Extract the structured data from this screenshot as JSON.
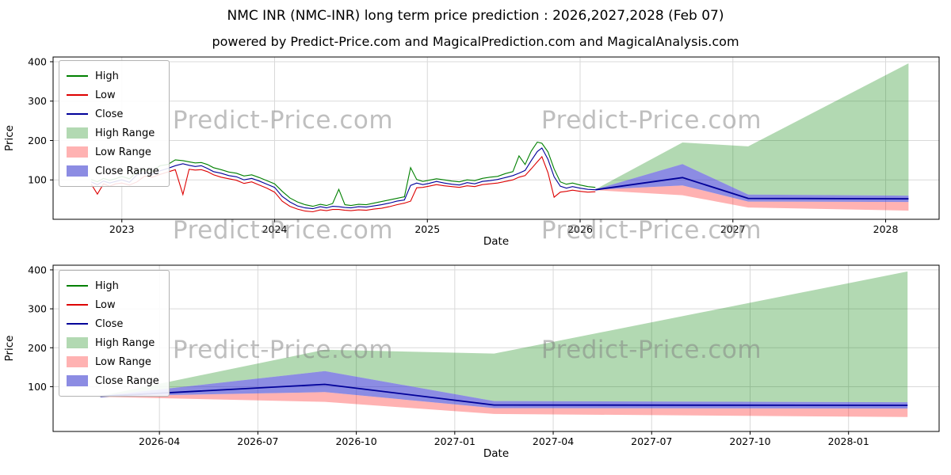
{
  "page": {
    "title": "NMC INR (NMC-INR) long term price prediction : 2026,2027,2028 (Feb 07)",
    "subtitle": "powered by Predict-Price.com and MagicalPrediction.com and MagicalAnalysis.com"
  },
  "watermark": "Predict-Price.com",
  "chart_data": {
    "type": "line",
    "title": "NMC INR (NMC-INR) long term price prediction : 2026,2027,2028 (Feb 07)",
    "subtitle": "powered by Predict-Price.com and MagicalPrediction.com and MagicalAnalysis.com",
    "legend_position": "upper left",
    "grid": true,
    "colors": {
      "high_line": "#008000",
      "low_line": "#dd0000",
      "close_line": "#000099",
      "high_range_fill": "#0080004d",
      "low_range_fill": "#ff00004d",
      "close_range_fill": "#4040d099",
      "grid": "#d9d9d9"
    },
    "legend": [
      {
        "label": "High",
        "swatch": "line",
        "color": "#008000"
      },
      {
        "label": "Low",
        "swatch": "line",
        "color": "#dd0000"
      },
      {
        "label": "Close",
        "swatch": "line",
        "color": "#000099"
      },
      {
        "label": "High Range",
        "swatch": "patch",
        "color": "#0080004d"
      },
      {
        "label": "Low Range",
        "swatch": "patch",
        "color": "#ff00004d"
      },
      {
        "label": "Close Range",
        "swatch": "patch",
        "color": "#4040d099"
      }
    ],
    "axes": [
      {
        "name": "history-and-forecast",
        "xlabel": "Date",
        "ylabel": "Price",
        "xlim": [
          2022.55,
          2028.35
        ],
        "ylim": [
          0,
          412
        ],
        "xticks": [
          {
            "v": 2023,
            "label": "2023"
          },
          {
            "v": 2024,
            "label": "2024"
          },
          {
            "v": 2025,
            "label": "2025"
          },
          {
            "v": 2026,
            "label": "2026"
          },
          {
            "v": 2027,
            "label": "2027"
          },
          {
            "v": 2028,
            "label": "2028"
          }
        ],
        "yticks": [
          {
            "v": 100,
            "label": "100"
          },
          {
            "v": 200,
            "label": "200"
          },
          {
            "v": 300,
            "label": "300"
          },
          {
            "v": 400,
            "label": "400"
          }
        ],
        "show_historical": true,
        "show_forecast": true
      },
      {
        "name": "forecast-detail",
        "xlabel": "Date",
        "ylabel": "Price",
        "xlim": [
          2025.98,
          2028.23
        ],
        "ylim": [
          -15,
          412
        ],
        "xticks": [
          {
            "v": 2026.25,
            "label": "2026-04"
          },
          {
            "v": 2026.5,
            "label": "2026-07"
          },
          {
            "v": 2026.75,
            "label": "2026-10"
          },
          {
            "v": 2027.0,
            "label": "2027-01"
          },
          {
            "v": 2027.25,
            "label": "2027-04"
          },
          {
            "v": 2027.5,
            "label": "2027-07"
          },
          {
            "v": 2027.75,
            "label": "2027-10"
          },
          {
            "v": 2028.0,
            "label": "2028-01"
          }
        ],
        "yticks": [
          {
            "v": 100,
            "label": "100"
          },
          {
            "v": 200,
            "label": "200"
          },
          {
            "v": 300,
            "label": "300"
          },
          {
            "v": 400,
            "label": "400"
          }
        ],
        "show_historical": false,
        "show_forecast": true
      }
    ],
    "historical": {
      "t": [
        2022.8,
        2022.84,
        2022.88,
        2022.92,
        2022.96,
        2023.0,
        2023.05,
        2023.1,
        2023.15,
        2023.2,
        2023.25,
        2023.3,
        2023.35,
        2023.4,
        2023.44,
        2023.48,
        2023.52,
        2023.56,
        2023.6,
        2023.65,
        2023.7,
        2023.75,
        2023.8,
        2023.85,
        2023.9,
        2023.95,
        2024.0,
        2024.05,
        2024.1,
        2024.15,
        2024.2,
        2024.25,
        2024.3,
        2024.34,
        2024.38,
        2024.42,
        2024.46,
        2024.5,
        2024.55,
        2024.6,
        2024.65,
        2024.7,
        2024.75,
        2024.8,
        2024.85,
        2024.89,
        2024.93,
        2024.97,
        2025.01,
        2025.06,
        2025.11,
        2025.16,
        2025.21,
        2025.26,
        2025.31,
        2025.36,
        2025.41,
        2025.46,
        2025.51,
        2025.56,
        2025.6,
        2025.64,
        2025.68,
        2025.72,
        2025.75,
        2025.79,
        2025.83,
        2025.87,
        2025.91,
        2025.95,
        2026.0,
        2026.05,
        2026.1
      ],
      "high": [
        101,
        95,
        104,
        99,
        103,
        109,
        103,
        120,
        126,
        122,
        136,
        139,
        151,
        149,
        146,
        143,
        144,
        139,
        131,
        126,
        120,
        117,
        110,
        113,
        106,
        98,
        90,
        71,
        54,
        44,
        37,
        33,
        38,
        35,
        40,
        76,
        37,
        35,
        38,
        37,
        41,
        45,
        49,
        53,
        57,
        131,
        101,
        96,
        99,
        103,
        100,
        97,
        95,
        100,
        98,
        104,
        107,
        109,
        116,
        121,
        161,
        139,
        173,
        196,
        193,
        171,
        128,
        95,
        89,
        92,
        87,
        83,
        81
      ],
      "low": [
        89,
        64,
        90,
        84,
        90,
        92,
        87,
        95,
        110,
        107,
        114,
        120,
        126,
        63,
        127,
        125,
        126,
        121,
        113,
        107,
        103,
        99,
        91,
        95,
        87,
        79,
        69,
        46,
        33,
        26,
        21,
        19,
        24,
        22,
        25,
        25,
        23,
        22,
        24,
        23,
        26,
        28,
        32,
        37,
        41,
        46,
        80,
        81,
        84,
        88,
        85,
        83,
        81,
        85,
        83,
        88,
        90,
        92,
        96,
        100,
        107,
        111,
        128,
        146,
        159,
        118,
        56,
        69,
        71,
        74,
        71,
        69,
        70
      ],
      "close": [
        95,
        88,
        97,
        92,
        96,
        100,
        94,
        113,
        118,
        114,
        123,
        129,
        136,
        141,
        137,
        134,
        136,
        129,
        121,
        117,
        111,
        108,
        100,
        104,
        97,
        89,
        81,
        58,
        44,
        34,
        29,
        27,
        32,
        29,
        33,
        32,
        30,
        29,
        32,
        31,
        34,
        37,
        41,
        46,
        49,
        86,
        92,
        88,
        91,
        96,
        92,
        89,
        87,
        93,
        90,
        96,
        98,
        101,
        106,
        111,
        117,
        124,
        149,
        172,
        181,
        152,
        108,
        84,
        79,
        83,
        79,
        76,
        75
      ]
    },
    "forecast": {
      "t": [
        2026.1,
        2026.67,
        2027.1,
        2028.15
      ],
      "high_upper": [
        76,
        195,
        185,
        396
      ],
      "close_upper": [
        76,
        140,
        63,
        60
      ],
      "close": [
        75,
        106,
        53,
        52
      ],
      "close_lower": [
        75,
        86,
        45,
        44
      ],
      "low_lower": [
        74,
        61,
        30,
        22
      ]
    }
  }
}
